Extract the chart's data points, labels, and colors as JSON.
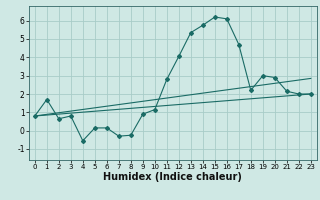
{
  "title": "",
  "xlabel": "Humidex (Indice chaleur)",
  "ylabel": "",
  "background_color": "#cfe8e4",
  "grid_color": "#a8ccc8",
  "line_color": "#1a6b65",
  "xlim": [
    -0.5,
    23.5
  ],
  "ylim": [
    -1.6,
    6.8
  ],
  "xticks": [
    0,
    1,
    2,
    3,
    4,
    5,
    6,
    7,
    8,
    9,
    10,
    11,
    12,
    13,
    14,
    15,
    16,
    17,
    18,
    19,
    20,
    21,
    22,
    23
  ],
  "yticks": [
    -1,
    0,
    1,
    2,
    3,
    4,
    5,
    6
  ],
  "main_x": [
    0,
    1,
    2,
    3,
    4,
    5,
    6,
    7,
    8,
    9,
    10,
    11,
    12,
    13,
    14,
    15,
    16,
    17,
    18,
    19,
    20,
    21,
    22,
    23
  ],
  "main_y": [
    0.8,
    1.7,
    0.65,
    0.8,
    -0.55,
    0.15,
    0.15,
    -0.3,
    -0.25,
    0.9,
    1.15,
    2.8,
    4.05,
    5.35,
    5.75,
    6.2,
    6.1,
    4.7,
    2.2,
    3.0,
    2.9,
    2.15,
    2.0,
    2.0
  ],
  "line1_x": [
    0,
    23
  ],
  "line1_y": [
    0.8,
    2.0
  ],
  "line2_x": [
    0,
    23
  ],
  "line2_y": [
    0.8,
    2.85
  ],
  "fontsize_xlabel": 7,
  "fontsize_ticks": 5
}
